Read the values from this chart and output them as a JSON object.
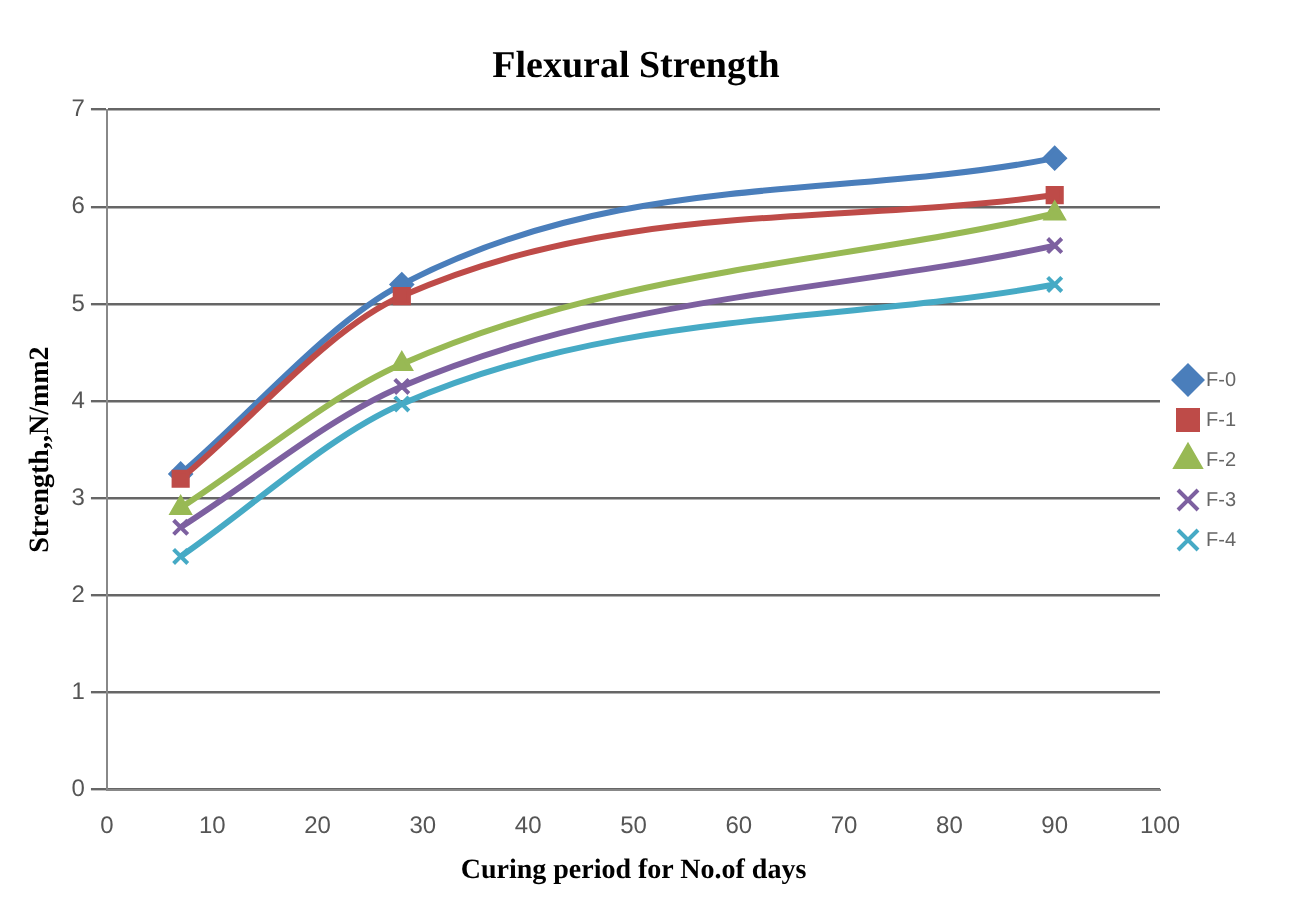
{
  "chart_data": {
    "type": "line",
    "title": "Flexural Strength",
    "xlabel": "Curing period for No.of days",
    "ylabel": "Strength,,N/mm2",
    "x": [
      7,
      28,
      90
    ],
    "series": [
      {
        "name": "F-0",
        "color": "#4a7ebb",
        "values": [
          3.25,
          5.2,
          6.5
        ],
        "marker": "diamond"
      },
      {
        "name": "F-1",
        "color": "#be4b48",
        "values": [
          3.2,
          5.08,
          6.12
        ],
        "marker": "square"
      },
      {
        "name": "F-2",
        "color": "#98b954",
        "values": [
          2.9,
          4.38,
          5.93
        ],
        "marker": "triangle"
      },
      {
        "name": "F-3",
        "color": "#7d60a0",
        "values": [
          2.7,
          4.15,
          5.6
        ],
        "marker": "cross"
      },
      {
        "name": "F-4",
        "color": "#46aac5",
        "values": [
          2.4,
          3.97,
          5.2
        ],
        "marker": "cross"
      }
    ],
    "xlim": [
      0,
      100
    ],
    "xticks": [
      0,
      10,
      20,
      30,
      40,
      50,
      60,
      70,
      80,
      90,
      100
    ],
    "ylim": [
      0,
      7
    ],
    "yticks": [
      0,
      1,
      2,
      3,
      4,
      5,
      6,
      7
    ],
    "grid": "y",
    "legend": "right"
  }
}
